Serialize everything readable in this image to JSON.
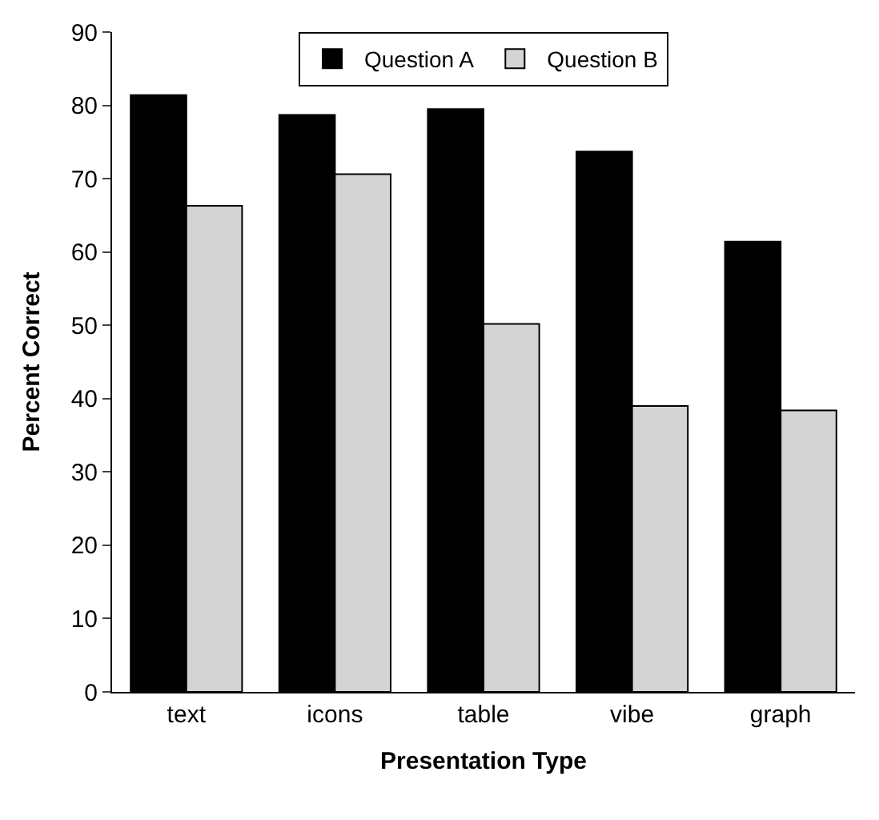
{
  "chart_data": {
    "type": "bar",
    "xlabel": "Presentation Type",
    "ylabel": "Percent Correct",
    "categories": [
      "text",
      "icons",
      "table",
      "vibe",
      "graph"
    ],
    "series": [
      {
        "name": "Question A",
        "color": "#000000",
        "values": [
          81.4,
          78.7,
          79.5,
          73.7,
          61.4
        ]
      },
      {
        "name": "Question B",
        "color": "#d4d4d4",
        "values": [
          66.3,
          70.6,
          50.2,
          39.0,
          38.4
        ]
      }
    ],
    "ylim": [
      0,
      90
    ],
    "yticks": [
      0,
      10,
      20,
      30,
      40,
      50,
      60,
      70,
      80,
      90
    ],
    "grid": false,
    "legend": "top"
  }
}
